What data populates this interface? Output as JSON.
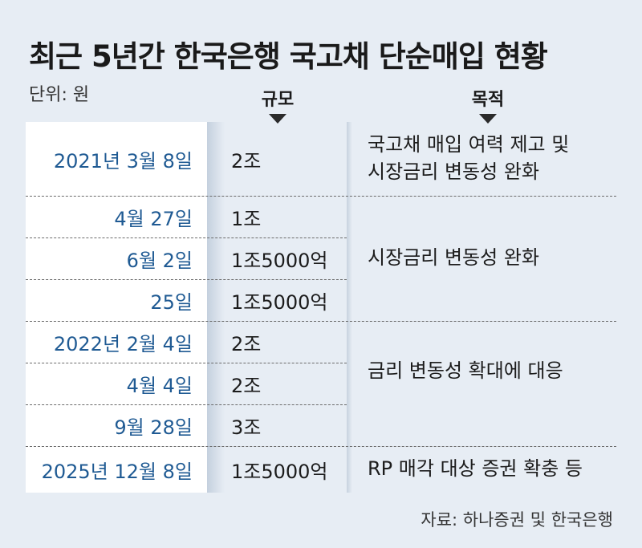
{
  "title": "최근 5년간 한국은행 국고채 단순매입 현황",
  "unit": "단위: 원",
  "columns": {
    "scale": "규모",
    "purpose": "목적"
  },
  "rows": [
    {
      "date": "2021년 3월 8일",
      "scale": "2조"
    },
    {
      "date": "4월 27일",
      "scale": "1조"
    },
    {
      "date": "6월 2일",
      "scale": "1조5000억"
    },
    {
      "date": "25일",
      "scale": "1조5000억"
    },
    {
      "date": "2022년 2월 4일",
      "scale": "2조"
    },
    {
      "date": "4월 4일",
      "scale": "2조"
    },
    {
      "date": "9월 28일",
      "scale": "3조"
    },
    {
      "date": "2025년 12월 8일",
      "scale": "1조5000억"
    }
  ],
  "purposes": [
    {
      "line1": "국고채 매입 여력 제고 및",
      "line2": "시장금리 변동성 완화"
    },
    {
      "line1": "시장금리 변동성 완화"
    },
    {
      "line1": "금리 변동성 확대에 대응"
    },
    {
      "line1": "RP 매각 대상 증권 확충 등"
    }
  ],
  "source": "자료: 하나증권 및 한국은행"
}
